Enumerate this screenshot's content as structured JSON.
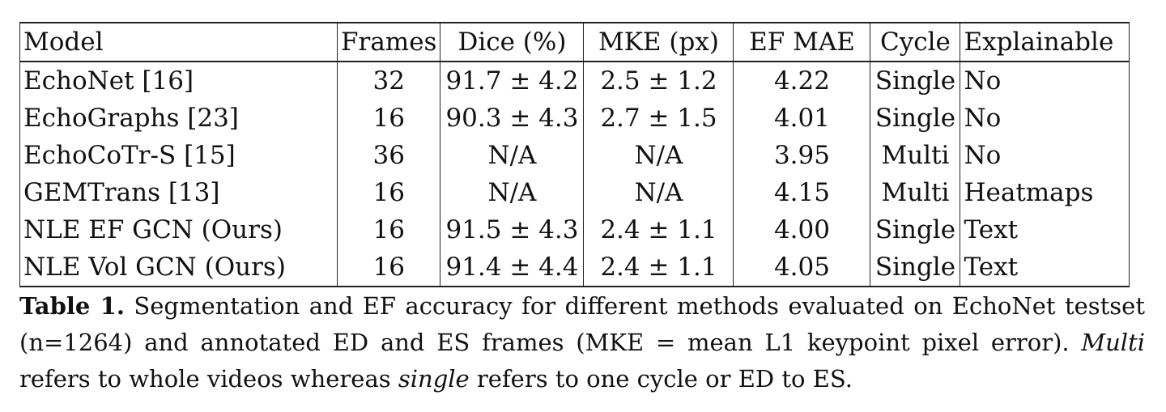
{
  "table": {
    "columns": [
      "Model",
      "Frames",
      "Dice (%)",
      "MKE (px)",
      "EF MAE",
      "Cycle",
      "Explainable"
    ],
    "rows": [
      {
        "model": "EchoNet [16]",
        "frames": "32",
        "dice": "91.7 ± 4.2",
        "mke": "2.5 ± 1.2",
        "ef_mae": "4.22",
        "cycle": "Single",
        "explainable": "No"
      },
      {
        "model": "EchoGraphs [23]",
        "frames": "16",
        "dice": "90.3 ± 4.3",
        "mke": "2.7 ± 1.5",
        "ef_mae": "4.01",
        "cycle": "Single",
        "explainable": "No"
      },
      {
        "model": "EchoCoTr-S [15]",
        "frames": "36",
        "dice": "N/A",
        "mke": "N/A",
        "ef_mae": "3.95",
        "cycle": "Multi",
        "explainable": "No"
      },
      {
        "model": "GEMTrans [13]",
        "frames": "16",
        "dice": "N/A",
        "mke": "N/A",
        "ef_mae": "4.15",
        "cycle": "Multi",
        "explainable": "Heatmaps"
      },
      {
        "model": "NLE EF GCN (Ours)",
        "frames": "16",
        "dice": "91.5 ± 4.3",
        "mke": "2.4 ± 1.1",
        "ef_mae": "4.00",
        "cycle": "Single",
        "explainable": "Text"
      },
      {
        "model": "NLE Vol GCN (Ours)",
        "frames": "16",
        "dice": "91.4 ± 4.4",
        "mke": "2.4 ± 1.1",
        "ef_mae": "4.05",
        "cycle": "Single",
        "explainable": "Text"
      }
    ]
  },
  "caption": {
    "label": "Table 1.",
    "text_1": " Segmentation and EF accuracy for different methods evaluated on EchoNet testset (n=1264) and annotated ED and ES frames (MKE = mean L1 keypoint pixel error). ",
    "em_1": "Multi",
    "text_2": " refers to whole videos whereas ",
    "em_2": "single",
    "text_3": " refers to one cycle or ED to ES."
  }
}
